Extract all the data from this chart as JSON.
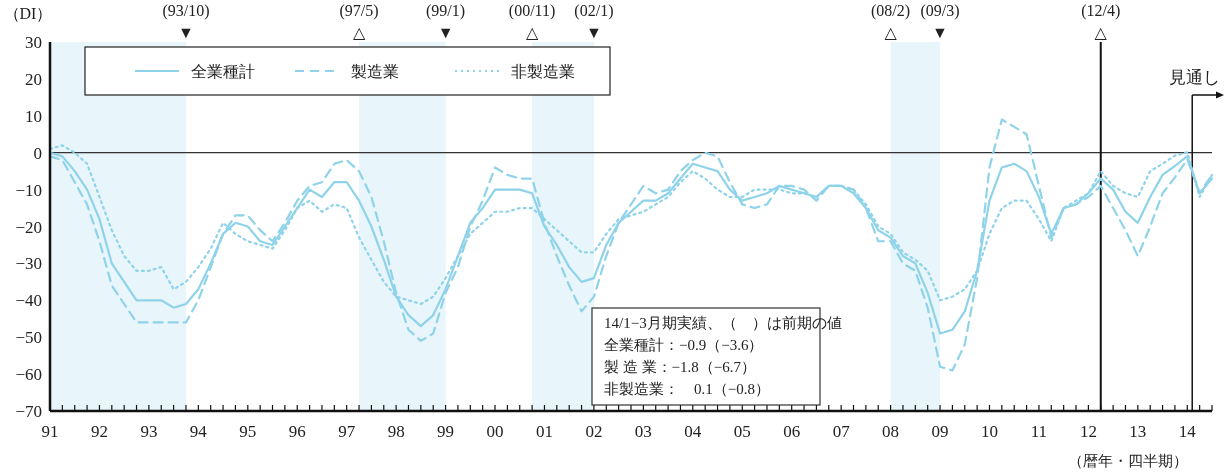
{
  "chart_data": {
    "type": "line",
    "xlabel": "（暦年・四半期）",
    "ylabel": "（DI）",
    "x": [
      1991,
      1991.25,
      1991.5,
      1991.75,
      1992,
      1992.25,
      1992.5,
      1992.75,
      1993,
      1993.25,
      1993.5,
      1993.75,
      1994,
      1994.25,
      1994.5,
      1994.75,
      1995,
      1995.25,
      1995.5,
      1995.75,
      1996,
      1996.25,
      1996.5,
      1996.75,
      1997,
      1997.25,
      1997.5,
      1997.75,
      1998,
      1998.25,
      1998.5,
      1998.75,
      1999,
      1999.25,
      1999.5,
      1999.75,
      2000,
      2000.25,
      2000.5,
      2000.75,
      2001,
      2001.25,
      2001.5,
      2001.75,
      2002,
      2002.25,
      2002.5,
      2002.75,
      2003,
      2003.25,
      2003.5,
      2003.75,
      2004,
      2004.25,
      2004.5,
      2004.75,
      2005,
      2005.25,
      2005.5,
      2005.75,
      2006,
      2006.25,
      2006.5,
      2006.75,
      2007,
      2007.25,
      2007.5,
      2007.75,
      2008,
      2008.25,
      2008.5,
      2008.75,
      2009,
      2009.25,
      2009.5,
      2009.75,
      2010,
      2010.25,
      2010.5,
      2010.75,
      2011,
      2011.25,
      2011.5,
      2011.75,
      2012,
      2012.25,
      2012.5,
      2012.75,
      2013,
      2013.25,
      2013.5,
      2013.75,
      2014,
      2014.25,
      2014.5
    ],
    "series": [
      {
        "name": "全業種計",
        "color": "#8fd3ea",
        "line_style": "solid",
        "values": [
          0,
          -1,
          -5,
          -10,
          -18,
          -30,
          -35,
          -40,
          -40,
          -40,
          -42,
          -41,
          -37,
          -30,
          -22,
          -19,
          -20,
          -24,
          -25,
          -20,
          -15,
          -10,
          -12,
          -8,
          -8,
          -13,
          -20,
          -29,
          -39,
          -44,
          -47,
          -44,
          -37,
          -28,
          -19,
          -15,
          -10,
          -10,
          -10,
          -11,
          -20,
          -25,
          -31,
          -35,
          -34,
          -25,
          -19,
          -16,
          -13,
          -13,
          -11,
          -7,
          -3,
          -4,
          -5,
          -10,
          -13,
          -12,
          -11,
          -9,
          -10,
          -11,
          -12,
          -9,
          -9,
          -11,
          -15,
          -21,
          -23,
          -28,
          -30,
          -38,
          -49,
          -48,
          -43,
          -32,
          -13,
          -4,
          -3,
          -5,
          -12,
          -22,
          -15,
          -14,
          -11,
          -7,
          -10,
          -16,
          -19,
          -12,
          -6,
          -3.6,
          -0.9,
          -11,
          -7
        ]
      },
      {
        "name": "製造業",
        "color": "#8fd3ea",
        "line_style": "dashed",
        "values": [
          -1,
          -2,
          -8,
          -14,
          -24,
          -36,
          -41,
          -46,
          -46,
          -46,
          -46,
          -46,
          -40,
          -31,
          -22,
          -17,
          -17,
          -21,
          -24,
          -19,
          -13,
          -9,
          -8,
          -3,
          -2,
          -5,
          -12,
          -24,
          -38,
          -48,
          -51,
          -49,
          -38,
          -31,
          -20,
          -13,
          -4,
          -6,
          -7,
          -7,
          -19,
          -28,
          -36,
          -43,
          -39,
          -28,
          -19,
          -14,
          -9,
          -11,
          -10,
          -5,
          -2,
          0,
          -1,
          -8,
          -14,
          -15,
          -14,
          -9,
          -9,
          -10,
          -13,
          -9,
          -9,
          -10,
          -15,
          -24,
          -24,
          -30,
          -32,
          -42,
          -58,
          -59,
          -52,
          -34,
          -4,
          9,
          7,
          5,
          -9,
          -23,
          -15,
          -14,
          -12,
          -9,
          -15,
          -21,
          -28,
          -20,
          -11,
          -6.7,
          -1.8,
          -11,
          -6
        ]
      },
      {
        "name": "非製造業",
        "color": "#8fd3ea",
        "line_style": "dotted",
        "values": [
          1,
          2,
          0,
          -3,
          -12,
          -21,
          -28,
          -32,
          -32,
          -31,
          -37,
          -35,
          -31,
          -26,
          -19,
          -22,
          -24,
          -25,
          -26,
          -21,
          -15,
          -13,
          -16,
          -14,
          -15,
          -23,
          -29,
          -35,
          -39,
          -40,
          -41,
          -39,
          -34,
          -28,
          -22,
          -19,
          -16,
          -16,
          -15,
          -15,
          -18,
          -21,
          -24,
          -27,
          -27,
          -22,
          -18,
          -17,
          -16,
          -14,
          -12,
          -8,
          -5,
          -7,
          -10,
          -12,
          -12,
          -10,
          -10,
          -10,
          -11,
          -11,
          -12,
          -9,
          -9,
          -10,
          -14,
          -20,
          -22,
          -27,
          -29,
          -32,
          -40,
          -39,
          -37,
          -32,
          -22,
          -15,
          -13,
          -13,
          -18,
          -24,
          -15,
          -13,
          -11,
          -5,
          -9,
          -11,
          -12,
          -5,
          -3,
          -0.8,
          0.1,
          -12,
          -6
        ]
      }
    ],
    "xlim": [
      1991,
      2014.5
    ],
    "ylim": [
      -70,
      30
    ],
    "yticks": [
      {
        "value": -70,
        "label": "−70"
      },
      {
        "value": -60,
        "label": "−60"
      },
      {
        "value": -50,
        "label": "−50"
      },
      {
        "value": -40,
        "label": "−40"
      },
      {
        "value": -30,
        "label": "−30"
      },
      {
        "value": -20,
        "label": "−20"
      },
      {
        "value": -10,
        "label": "−10"
      },
      0,
      10,
      20,
      30
    ],
    "xticks": [
      {
        "value": 1991,
        "label": "91"
      },
      {
        "value": 1991.25,
        "label": null
      },
      {
        "value": 1991.5,
        "label": null
      },
      {
        "value": 1991.75,
        "label": null
      },
      {
        "value": 1992,
        "label": "92"
      },
      {
        "value": 1992.25,
        "label": null
      },
      {
        "value": 1992.5,
        "label": null
      },
      {
        "value": 1992.75,
        "label": null
      },
      {
        "value": 1993,
        "label": "93"
      },
      {
        "value": 1993.25,
        "label": null
      },
      {
        "value": 1993.5,
        "label": null
      },
      {
        "value": 1993.75,
        "label": null
      },
      {
        "value": 1994,
        "label": "94"
      },
      {
        "value": 1994.25,
        "label": null
      },
      {
        "value": 1994.5,
        "label": null
      },
      {
        "value": 1994.75,
        "label": null
      },
      {
        "value": 1995,
        "label": "95"
      },
      {
        "value": 1995.25,
        "label": null
      },
      {
        "value": 1995.5,
        "label": null
      },
      {
        "value": 1995.75,
        "label": null
      },
      {
        "value": 1996,
        "label": "96"
      },
      {
        "value": 1996.25,
        "label": null
      },
      {
        "value": 1996.5,
        "label": null
      },
      {
        "value": 1996.75,
        "label": null
      },
      {
        "value": 1997,
        "label": "97"
      },
      {
        "value": 1997.25,
        "label": null
      },
      {
        "value": 1997.5,
        "label": null
      },
      {
        "value": 1997.75,
        "label": null
      },
      {
        "value": 1998,
        "label": "98"
      },
      {
        "value": 1998.25,
        "label": null
      },
      {
        "value": 1998.5,
        "label": null
      },
      {
        "value": 1998.75,
        "label": null
      },
      {
        "value": 1999,
        "label": "99"
      },
      {
        "value": 1999.25,
        "label": null
      },
      {
        "value": 1999.5,
        "label": null
      },
      {
        "value": 1999.75,
        "label": null
      },
      {
        "value": 2000,
        "label": "00"
      },
      {
        "value": 2000.25,
        "label": null
      },
      {
        "value": 2000.5,
        "label": null
      },
      {
        "value": 2000.75,
        "label": null
      },
      {
        "value": 2001,
        "label": "01"
      },
      {
        "value": 2001.25,
        "label": null
      },
      {
        "value": 2001.5,
        "label": null
      },
      {
        "value": 2001.75,
        "label": null
      },
      {
        "value": 2002,
        "label": "02"
      },
      {
        "value": 2002.25,
        "label": null
      },
      {
        "value": 2002.5,
        "label": null
      },
      {
        "value": 2002.75,
        "label": null
      },
      {
        "value": 2003,
        "label": "03"
      },
      {
        "value": 2003.25,
        "label": null
      },
      {
        "value": 2003.5,
        "label": null
      },
      {
        "value": 2003.75,
        "label": null
      },
      {
        "value": 2004,
        "label": "04"
      },
      {
        "value": 2004.25,
        "label": null
      },
      {
        "value": 2004.5,
        "label": null
      },
      {
        "value": 2004.75,
        "label": null
      },
      {
        "value": 2005,
        "label": "05"
      },
      {
        "value": 2005.25,
        "label": null
      },
      {
        "value": 2005.5,
        "label": null
      },
      {
        "value": 2005.75,
        "label": null
      },
      {
        "value": 2006,
        "label": "06"
      },
      {
        "value": 2006.25,
        "label": null
      },
      {
        "value": 2006.5,
        "label": null
      },
      {
        "value": 2006.75,
        "label": null
      },
      {
        "value": 2007,
        "label": "07"
      },
      {
        "value": 2007.25,
        "label": null
      },
      {
        "value": 2007.5,
        "label": null
      },
      {
        "value": 2007.75,
        "label": null
      },
      {
        "value": 2008,
        "label": "08"
      },
      {
        "value": 2008.25,
        "label": null
      },
      {
        "value": 2008.5,
        "label": null
      },
      {
        "value": 2008.75,
        "label": null
      },
      {
        "value": 2009,
        "label": "09"
      },
      {
        "value": 2009.25,
        "label": null
      },
      {
        "value": 2009.5,
        "label": null
      },
      {
        "value": 2009.75,
        "label": null
      },
      {
        "value": 2010,
        "label": "10"
      },
      {
        "value": 2010.25,
        "label": null
      },
      {
        "value": 2010.5,
        "label": null
      },
      {
        "value": 2010.75,
        "label": null
      },
      {
        "value": 2011,
        "label": "11"
      },
      {
        "value": 2011.25,
        "label": null
      },
      {
        "value": 2011.5,
        "label": null
      },
      {
        "value": 2011.75,
        "label": null
      },
      {
        "value": 2012,
        "label": "12"
      },
      {
        "value": 2012.25,
        "label": null
      },
      {
        "value": 2012.5,
        "label": null
      },
      {
        "value": 2012.75,
        "label": null
      },
      {
        "value": 2013,
        "label": "13"
      },
      {
        "value": 2013.25,
        "label": null
      },
      {
        "value": 2013.5,
        "label": null
      },
      {
        "value": 2013.75,
        "label": null
      },
      {
        "value": 2014,
        "label": "14"
      },
      {
        "value": 2014.25,
        "label": null
      },
      {
        "value": 2014.5,
        "label": null
      }
    ],
    "bands": [
      {
        "axis": "x",
        "from": 1991,
        "to": 1993.75,
        "color": "#e8f5fa"
      },
      {
        "axis": "x",
        "from": 1997.25,
        "to": 1999,
        "color": "#e8f5fa"
      },
      {
        "axis": "x",
        "from": 2000.75,
        "to": 2002,
        "color": "#e8f5fa"
      },
      {
        "axis": "x",
        "from": 2008,
        "to": 2009,
        "color": "#e8f5fa"
      }
    ],
    "ref_lines": [
      {
        "axis": "y",
        "value": 0,
        "color": "#333333"
      },
      {
        "axis": "x",
        "value": 2012.25,
        "color": "#111111"
      },
      {
        "axis": "x",
        "value": 2014.1,
        "label": "見通し",
        "color": "#111111"
      }
    ],
    "annotations": [
      {
        "text": "(93/10)\n▼",
        "x": 1993.75,
        "y": 30
      },
      {
        "text": "(97/5)\n△",
        "x": 1997.25,
        "y": 30
      },
      {
        "text": "(99/1)\n▼",
        "x": 1999,
        "y": 30
      },
      {
        "text": "(00/11)\n△",
        "x": 2000.75,
        "y": 30
      },
      {
        "text": "(02/1)\n▼",
        "x": 2002,
        "y": 30
      },
      {
        "text": "(08/2)\n△",
        "x": 2008,
        "y": 30
      },
      {
        "text": "(09/3)\n▼",
        "x": 2009,
        "y": 30
      },
      {
        "text": "(12/4)\n△",
        "x": 2012.25,
        "y": 30
      },
      "14/1−3月期実績、（　）は前期の値",
      "全業種計：−0.9（−3.6）",
      "製 造 業：−1.8（−6.7）",
      "非製造業：　0.1（−0.8）"
    ],
    "legend": "top left",
    "grid": false
  }
}
